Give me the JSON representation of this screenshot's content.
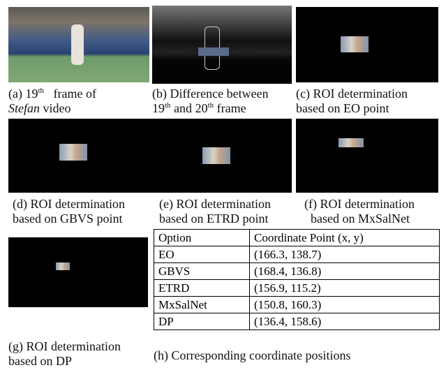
{
  "captions": {
    "a": {
      "label": "(a)",
      "number": "19",
      "sup": "th",
      "text": "frame of",
      "italic": "Stefan",
      "tail": "video"
    },
    "b": {
      "label": "(b)",
      "text": "Difference between",
      "number1": "19",
      "sup1": "th",
      "mid": "and",
      "number2": "20",
      "sup2": "th",
      "tail": "frame"
    },
    "c": {
      "label": "(c)",
      "line1": "ROI determination",
      "line2": "based on EO point"
    },
    "d": {
      "label": "(d)",
      "line1": "ROI determination",
      "line2": "based on GBVS point"
    },
    "e": {
      "label": "(e)",
      "line1": "ROI determination",
      "line2": "based on ETRD point"
    },
    "f": {
      "label": "(f)",
      "line1": "ROI determination",
      "line2": "based on MxSalNet"
    },
    "g": {
      "label": "(g)",
      "line1": "ROI determination",
      "line2": "based on DP"
    },
    "h": {
      "label": "(h)",
      "text": "Corresponding coordinate positions"
    }
  },
  "table": {
    "header": [
      "Option",
      "Coordinate Point (x, y)"
    ],
    "rows": [
      [
        "EO",
        "(166.3, 138.7)"
      ],
      [
        "GBVS",
        "(168.4, 136.8)"
      ],
      [
        "ETRD",
        "(156.9, 115.2)"
      ],
      [
        "MxSalNet",
        "(150.8, 160.3)"
      ],
      [
        "DP",
        "(136.4, 158.6)"
      ]
    ]
  }
}
